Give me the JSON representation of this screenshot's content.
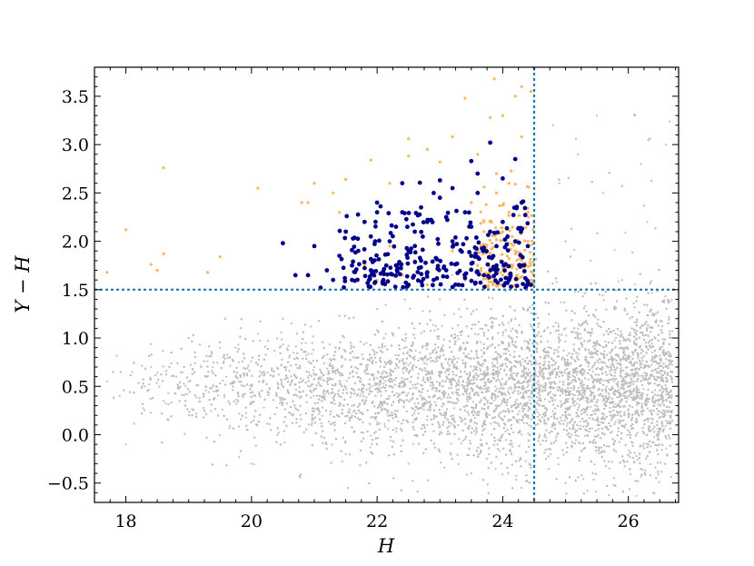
{
  "chart_data": {
    "type": "scatter",
    "title": "",
    "xlabel": "H",
    "ylabel": "Y − H",
    "xlim": [
      17.5,
      26.8
    ],
    "ylim": [
      -0.7,
      3.8
    ],
    "x_ticks": [
      18,
      20,
      22,
      24,
      26
    ],
    "y_ticks": [
      -0.5,
      0.0,
      0.5,
      1.0,
      1.5,
      2.0,
      2.5,
      3.0,
      3.5
    ],
    "y_tick_labels": [
      "−0.5",
      "0.0",
      "0.5",
      "1.0",
      "1.5",
      "2.0",
      "2.5",
      "3.0",
      "3.5"
    ],
    "grid": false,
    "legend": "none",
    "cuts": {
      "color_cut_y": 1.5,
      "mag_cut_x": 24.5,
      "color": "#1f77b4",
      "style": "dotted"
    },
    "colors": {
      "background_sources": "#bdbdbd",
      "selected_faint": "#ffb55a",
      "selected_bright": "#00008b"
    },
    "series": [
      {
        "kind": "field",
        "color": "#bdbdbd",
        "description_points": "dense cloud, H 17.6–26.7, Y-H -0.7–3.4, peak near H 24.5-25.5, Y-H ~0.4",
        "points": [
          [
            17.7,
            0.55
          ],
          [
            17.9,
            0.4
          ],
          [
            18.1,
            0.65
          ],
          [
            18.3,
            0.5
          ],
          [
            18.4,
            0.7
          ],
          [
            18.6,
            0.35
          ],
          [
            18.8,
            0.6
          ],
          [
            19.0,
            0.55
          ],
          [
            19.2,
            0.7
          ],
          [
            19.4,
            0.45
          ],
          [
            19.6,
            0.6
          ],
          [
            19.8,
            0.75
          ],
          [
            20.0,
            0.5
          ],
          [
            20.2,
            0.65
          ],
          [
            20.4,
            0.4
          ],
          [
            20.6,
            0.8
          ],
          [
            20.8,
            0.55
          ],
          [
            21.0,
            0.7
          ],
          [
            21.2,
            0.45
          ],
          [
            21.4,
            0.9
          ],
          [
            21.6,
            0.3
          ],
          [
            21.8,
            0.65
          ],
          [
            22.0,
            0.85
          ],
          [
            22.2,
            0.2
          ],
          [
            22.4,
            0.55
          ],
          [
            22.6,
            1.0
          ],
          [
            22.8,
            0.1
          ],
          [
            23.0,
            0.6
          ],
          [
            23.2,
            1.1
          ],
          [
            23.4,
            0.25
          ],
          [
            23.6,
            0.75
          ],
          [
            23.8,
            1.2
          ],
          [
            24.0,
            0.0
          ],
          [
            24.2,
            0.5
          ],
          [
            24.4,
            1.3
          ],
          [
            24.6,
            -0.1
          ],
          [
            24.8,
            0.65
          ],
          [
            25.0,
            1.1
          ],
          [
            25.2,
            0.2
          ],
          [
            25.4,
            0.8
          ],
          [
            25.6,
            0.35
          ],
          [
            25.8,
            1.0
          ],
          [
            26.0,
            0.45
          ],
          [
            26.2,
            0.7
          ],
          [
            26.4,
            0.3
          ],
          [
            26.6,
            0.55
          ],
          [
            18.0,
            -0.1
          ],
          [
            19.0,
            1.0
          ],
          [
            20.5,
            1.2
          ],
          [
            21.5,
            -0.2
          ],
          [
            22.5,
            -0.3
          ],
          [
            23.5,
            -0.4
          ],
          [
            24.3,
            -0.55
          ],
          [
            25.0,
            -0.5
          ],
          [
            25.7,
            -0.35
          ],
          [
            24.8,
            3.2
          ],
          [
            25.2,
            2.9
          ],
          [
            25.6,
            2.5
          ],
          [
            26.2,
            2.8
          ],
          [
            25.0,
            2.0
          ],
          [
            25.4,
            1.8
          ],
          [
            25.9,
            1.6
          ],
          [
            26.3,
            2.2
          ],
          [
            24.9,
            2.6
          ],
          [
            25.5,
            3.3
          ],
          [
            26.6,
            3.0
          ],
          [
            22.0,
            1.3
          ],
          [
            23.0,
            1.4
          ],
          [
            20.0,
            -0.3
          ],
          [
            19.5,
            0.9
          ]
        ]
      },
      {
        "kind": "selected-faint",
        "color": "#ffb55a",
        "points": [
          [
            17.7,
            1.68
          ],
          [
            18.0,
            2.12
          ],
          [
            18.4,
            1.76
          ],
          [
            18.5,
            1.7
          ],
          [
            18.6,
            2.76
          ],
          [
            18.6,
            1.87
          ],
          [
            19.3,
            1.68
          ],
          [
            19.5,
            1.84
          ],
          [
            20.1,
            2.55
          ],
          [
            20.8,
            2.4
          ],
          [
            20.9,
            2.4
          ],
          [
            21.0,
            2.6
          ],
          [
            21.3,
            2.5
          ],
          [
            21.5,
            2.64
          ],
          [
            21.4,
            2.3
          ],
          [
            21.9,
            2.84
          ],
          [
            22.2,
            2.6
          ],
          [
            22.5,
            3.06
          ],
          [
            22.5,
            2.88
          ],
          [
            22.8,
            2.95
          ],
          [
            23.0,
            2.82
          ],
          [
            23.2,
            3.08
          ],
          [
            23.4,
            3.48
          ],
          [
            23.6,
            2.9
          ],
          [
            23.8,
            3.28
          ],
          [
            24.0,
            3.3
          ],
          [
            24.2,
            3.5
          ],
          [
            24.3,
            3.6
          ],
          [
            24.3,
            3.08
          ],
          [
            24.45,
            3.55
          ],
          [
            23.5,
            2.4
          ],
          [
            23.7,
            2.2
          ],
          [
            23.9,
            2.5
          ],
          [
            24.0,
            2.1
          ],
          [
            24.1,
            2.3
          ],
          [
            24.2,
            1.9
          ],
          [
            24.3,
            2.4
          ],
          [
            24.35,
            1.7
          ],
          [
            24.4,
            2.0
          ],
          [
            24.45,
            1.6
          ],
          [
            24.2,
            1.55
          ],
          [
            24.0,
            1.65
          ],
          [
            23.8,
            1.85
          ],
          [
            23.6,
            1.75
          ],
          [
            23.4,
            1.6
          ],
          [
            23.2,
            1.9
          ],
          [
            23.0,
            1.7
          ],
          [
            22.8,
            1.55
          ],
          [
            22.6,
            1.8
          ],
          [
            22.4,
            1.65
          ],
          [
            22.2,
            1.95
          ],
          [
            22.0,
            1.6
          ],
          [
            21.8,
            1.75
          ],
          [
            21.6,
            1.9
          ],
          [
            23.9,
            2.7
          ],
          [
            24.1,
            2.6
          ],
          [
            24.4,
            2.3
          ],
          [
            24.3,
            1.8
          ],
          [
            24.15,
            2.05
          ],
          [
            24.25,
            2.15
          ]
        ]
      },
      {
        "kind": "selected-bright",
        "color": "#00008b",
        "points": [
          [
            20.5,
            1.98
          ],
          [
            20.7,
            1.65
          ],
          [
            20.9,
            1.65
          ],
          [
            21.0,
            1.95
          ],
          [
            21.1,
            1.52
          ],
          [
            21.3,
            1.6
          ],
          [
            21.4,
            1.85
          ],
          [
            21.5,
            2.1
          ],
          [
            21.6,
            1.6
          ],
          [
            21.7,
            1.9
          ],
          [
            21.8,
            2.2
          ],
          [
            21.9,
            1.7
          ],
          [
            22.0,
            2.4
          ],
          [
            22.1,
            1.6
          ],
          [
            22.2,
            2.0
          ],
          [
            22.3,
            1.75
          ],
          [
            22.4,
            2.3
          ],
          [
            22.5,
            1.55
          ],
          [
            22.6,
            2.1
          ],
          [
            22.7,
            1.8
          ],
          [
            22.8,
            2.2
          ],
          [
            22.9,
            1.6
          ],
          [
            23.0,
            2.45
          ],
          [
            23.1,
            1.7
          ],
          [
            23.2,
            2.0
          ],
          [
            23.3,
            1.55
          ],
          [
            23.4,
            2.3
          ],
          [
            23.5,
            1.85
          ],
          [
            23.6,
            2.5
          ],
          [
            23.7,
            1.65
          ],
          [
            23.8,
            2.1
          ],
          [
            23.9,
            1.75
          ],
          [
            24.0,
            2.2
          ],
          [
            24.1,
            1.6
          ],
          [
            24.2,
            2.0
          ],
          [
            24.3,
            1.75
          ],
          [
            24.4,
            1.95
          ],
          [
            24.45,
            1.55
          ],
          [
            23.8,
            3.02
          ],
          [
            23.5,
            2.83
          ],
          [
            23.0,
            2.63
          ],
          [
            22.9,
            2.5
          ],
          [
            22.4,
            2.6
          ],
          [
            22.0,
            2.3
          ],
          [
            23.2,
            2.55
          ],
          [
            23.6,
            2.7
          ],
          [
            24.0,
            2.65
          ],
          [
            24.2,
            2.85
          ],
          [
            21.9,
            2.05
          ],
          [
            22.3,
            2.15
          ],
          [
            22.7,
            2.35
          ],
          [
            23.1,
            2.25
          ],
          [
            23.5,
            2.15
          ],
          [
            23.9,
            1.95
          ],
          [
            24.3,
            2.4
          ],
          [
            22.5,
            1.9
          ],
          [
            21.6,
            1.75
          ],
          [
            21.2,
            1.7
          ],
          [
            22.8,
            1.68
          ],
          [
            23.4,
            1.62
          ]
        ]
      }
    ]
  }
}
